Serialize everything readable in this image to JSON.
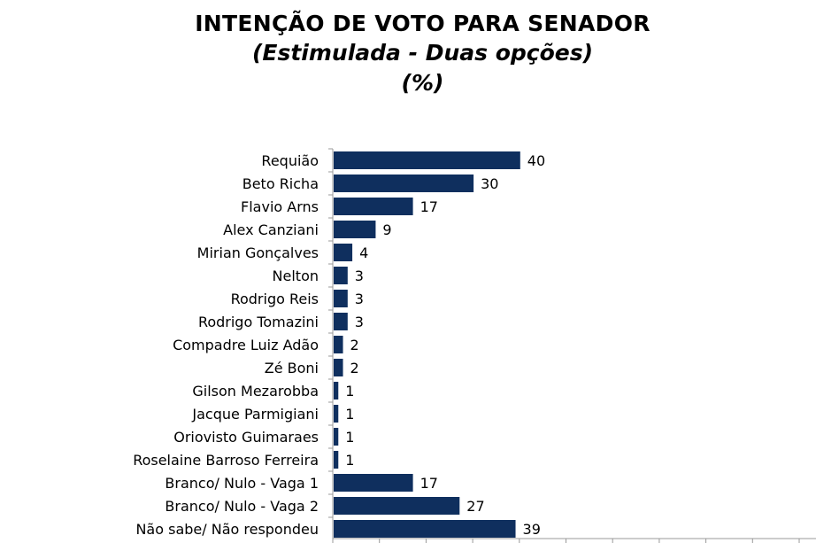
{
  "chart_data": {
    "type": "bar",
    "orientation": "horizontal",
    "title": "INTENÇÃO DE VOTO PARA SENADOR",
    "subtitle": "(Estimulada - Duas opções)",
    "unit": "(%)",
    "categories": [
      "Requião",
      "Beto Richa",
      "Flavio Arns",
      "Alex Canziani",
      "Mirian Gonçalves",
      "Nelton",
      "Rodrigo Reis",
      "Rodrigo Tomazini",
      "Compadre Luiz Adão",
      "Zé Boni",
      "Gilson Mezarobba",
      "Jacque Parmigiani",
      "Oriovisto Guimaraes",
      "Roselaine Barroso Ferreira",
      "Branco/ Nulo - Vaga 1",
      "Branco/ Nulo - Vaga 2",
      "Não sabe/ Não respondeu"
    ],
    "values": [
      40,
      30,
      17,
      9,
      4,
      3,
      3,
      3,
      2,
      2,
      1,
      1,
      1,
      1,
      17,
      27,
      39
    ],
    "xlim": [
      0,
      100
    ],
    "bar_color": "#0f2f5e",
    "data_labels": true
  }
}
